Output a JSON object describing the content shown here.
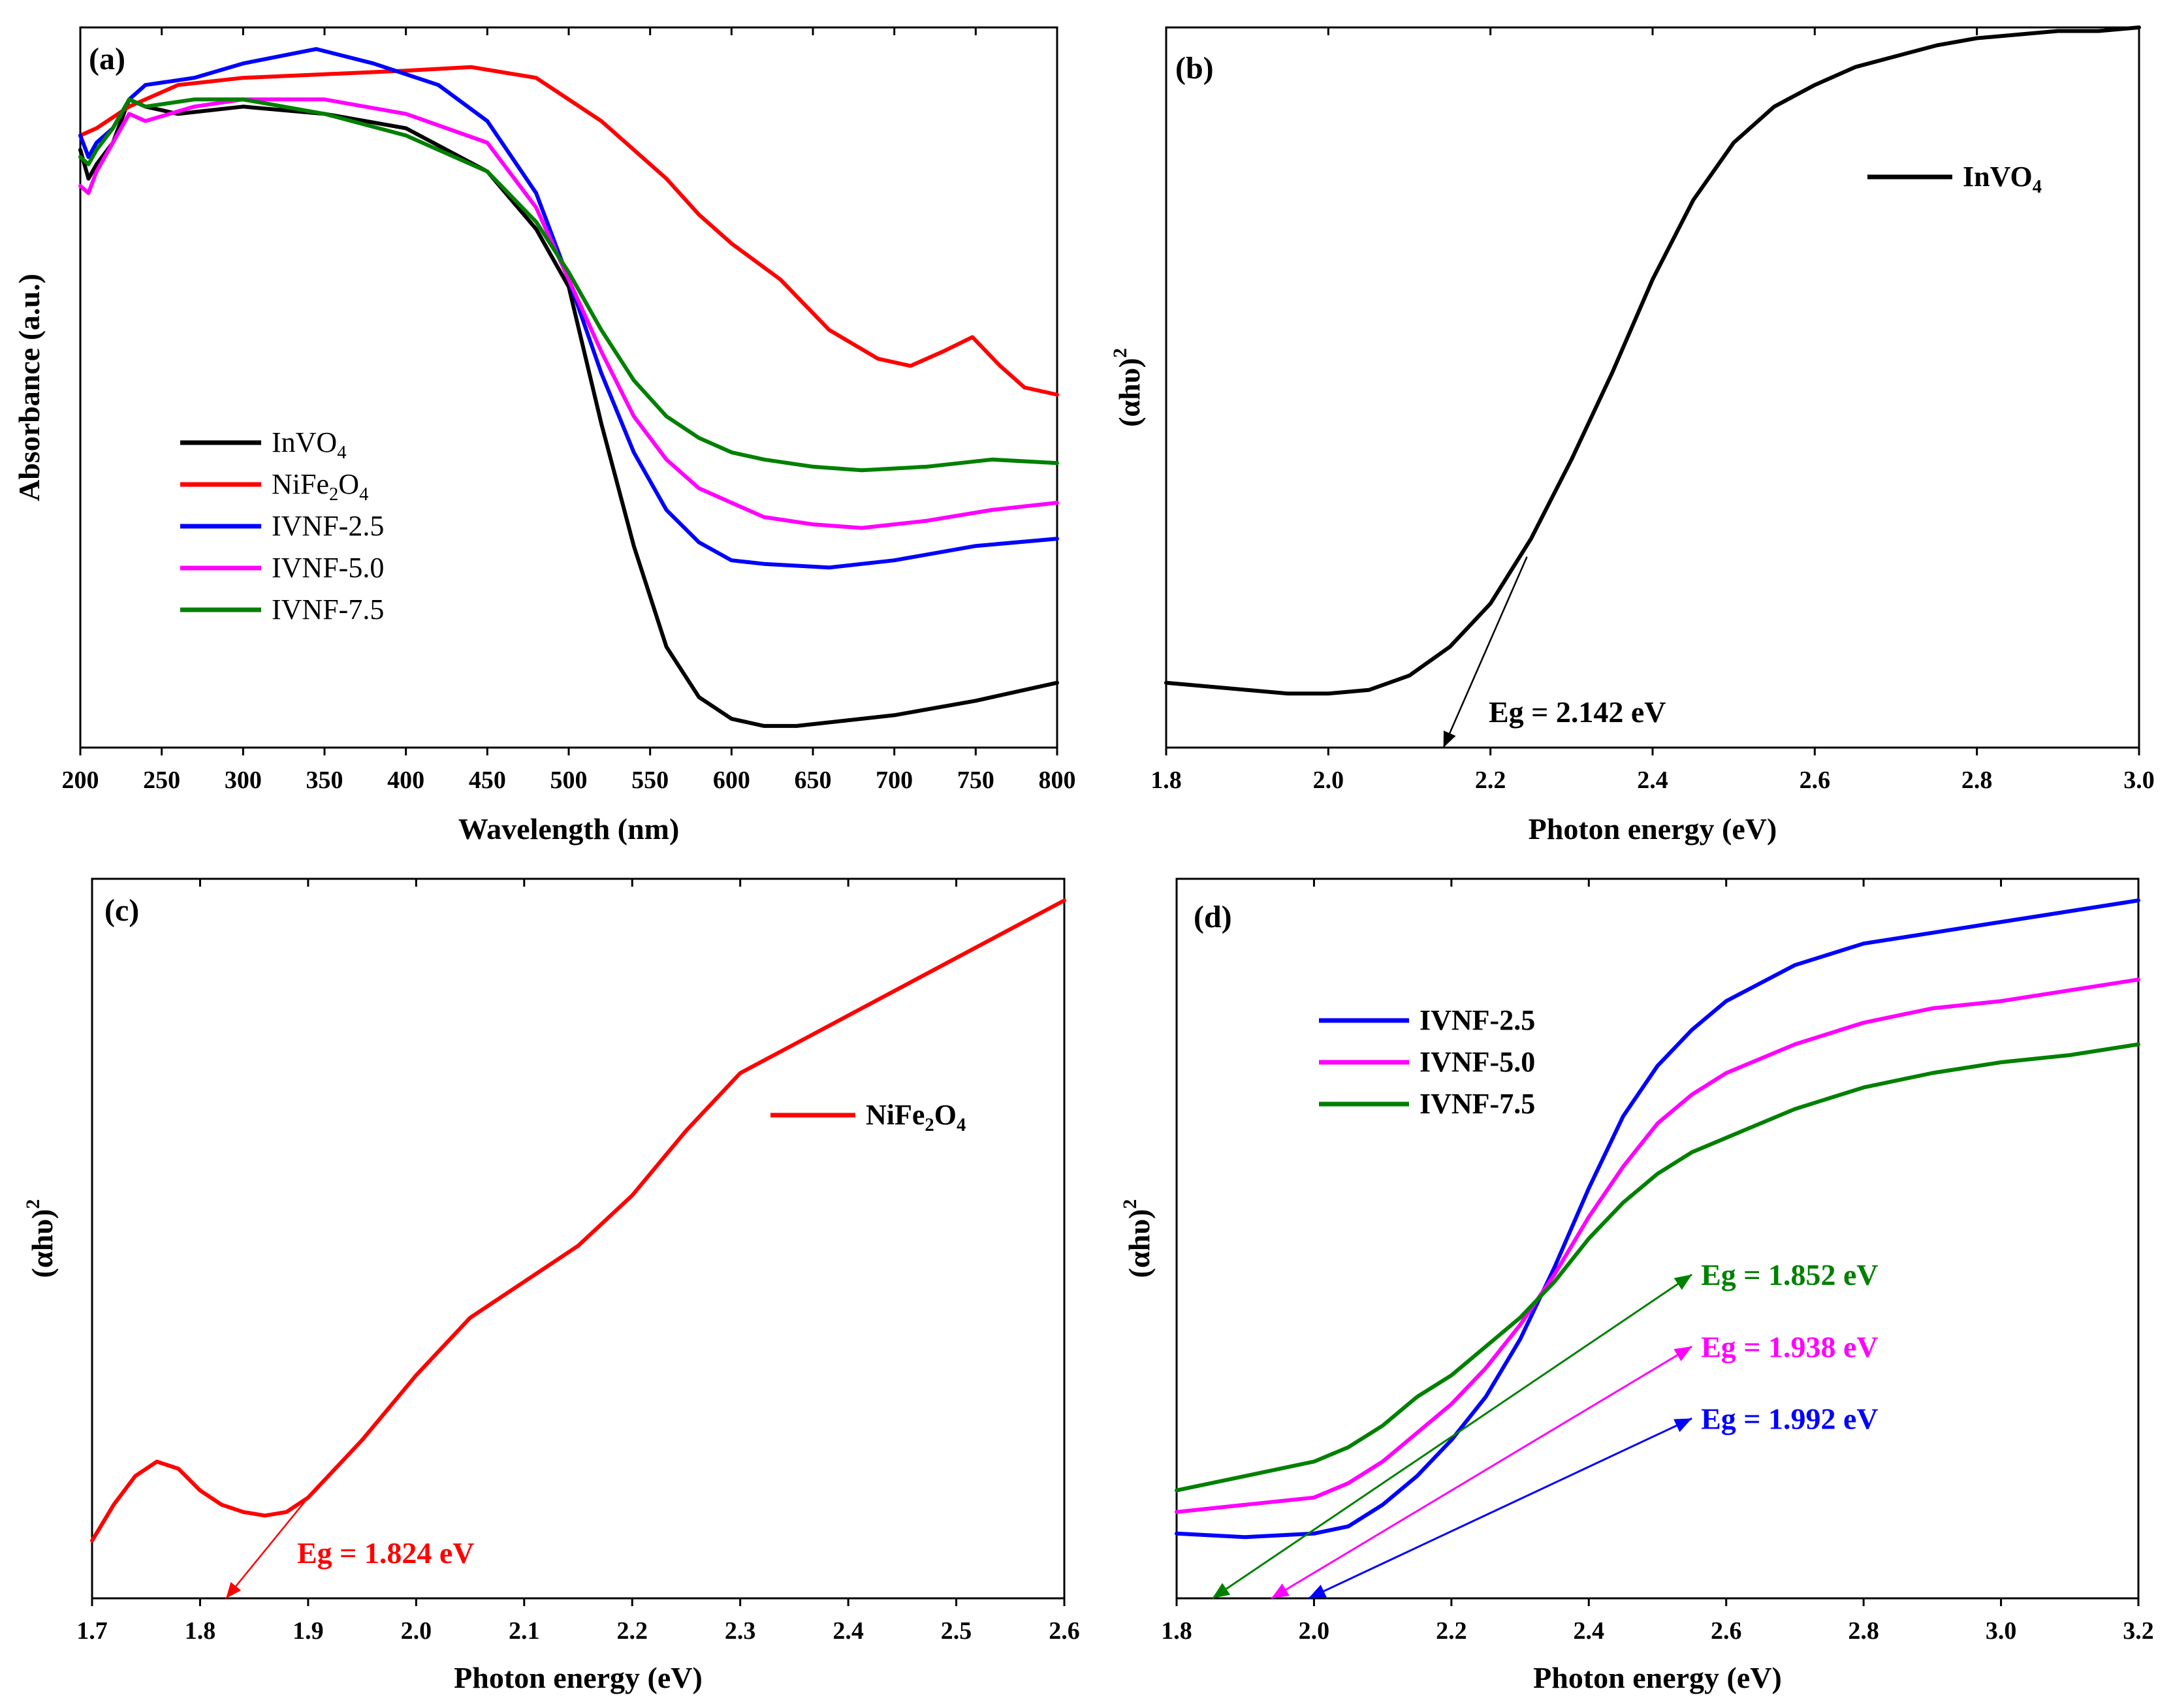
{
  "chart_data": [
    {
      "id": "a",
      "type": "line",
      "panel_label": "(a)",
      "title": "",
      "xlabel": "Wavelength (nm)",
      "ylabel": "Absorbance (a.u.)",
      "xlim": [
        200,
        800
      ],
      "ylim": [
        0,
        1
      ],
      "xticks": [
        200,
        250,
        300,
        350,
        400,
        450,
        500,
        550,
        600,
        650,
        700,
        750,
        800
      ],
      "xtick_labels": [
        "200",
        "250",
        "300",
        "350",
        "400",
        "450",
        "500",
        "550",
        "600",
        "650",
        "700",
        "750",
        "800"
      ],
      "yticks_shown": false,
      "legend_position": "lower-left",
      "series": [
        {
          "name": "InVO4",
          "legend_main": "InVO",
          "legend_sub": [
            "4"
          ],
          "legend_parts": [
            "InVO",
            "4"
          ],
          "color": "#000000",
          "x": [
            200,
            205,
            210,
            220,
            230,
            240,
            260,
            300,
            350,
            400,
            450,
            480,
            500,
            520,
            540,
            560,
            580,
            600,
            620,
            640,
            660,
            700,
            750,
            800
          ],
          "y": [
            0.83,
            0.79,
            0.81,
            0.84,
            0.9,
            0.89,
            0.88,
            0.89,
            0.88,
            0.86,
            0.8,
            0.72,
            0.64,
            0.45,
            0.28,
            0.14,
            0.07,
            0.04,
            0.03,
            0.03,
            0.035,
            0.045,
            0.065,
            0.09
          ]
        },
        {
          "name": "NiFe2O4",
          "legend_main": "NiFe",
          "legend_sub": [
            "2",
            "4"
          ],
          "legend_parts": [
            "NiFe",
            "2",
            "O",
            "4"
          ],
          "color": "#ff0000",
          "x": [
            200,
            210,
            230,
            260,
            300,
            350,
            400,
            440,
            480,
            520,
            560,
            580,
            600,
            630,
            660,
            690,
            710,
            730,
            748,
            765,
            780,
            800
          ],
          "y": [
            0.85,
            0.86,
            0.89,
            0.92,
            0.93,
            0.935,
            0.94,
            0.945,
            0.93,
            0.87,
            0.79,
            0.74,
            0.7,
            0.65,
            0.58,
            0.54,
            0.53,
            0.55,
            0.57,
            0.53,
            0.5,
            0.49
          ]
        },
        {
          "name": "IVNF-2.5",
          "legend_main": "IVNF-2.5",
          "legend_sub": [],
          "legend_parts": [
            "IVNF-2.5"
          ],
          "color": "#0000ff",
          "x": [
            200,
            205,
            210,
            220,
            230,
            240,
            270,
            300,
            345,
            380,
            420,
            450,
            480,
            500,
            520,
            540,
            560,
            580,
            600,
            620,
            660,
            700,
            750,
            800
          ],
          "y": [
            0.85,
            0.82,
            0.84,
            0.86,
            0.9,
            0.92,
            0.93,
            0.95,
            0.97,
            0.95,
            0.92,
            0.87,
            0.77,
            0.65,
            0.52,
            0.41,
            0.33,
            0.285,
            0.26,
            0.255,
            0.25,
            0.26,
            0.28,
            0.29
          ]
        },
        {
          "name": "IVNF-5.0",
          "legend_main": "IVNF-5.0",
          "legend_sub": [],
          "legend_parts": [
            "IVNF-5.0"
          ],
          "color": "#ff00ff",
          "x": [
            200,
            205,
            210,
            220,
            230,
            240,
            270,
            300,
            350,
            400,
            450,
            480,
            500,
            520,
            540,
            560,
            580,
            600,
            620,
            650,
            680,
            720,
            760,
            800
          ],
          "y": [
            0.78,
            0.77,
            0.8,
            0.84,
            0.88,
            0.87,
            0.89,
            0.9,
            0.9,
            0.88,
            0.84,
            0.75,
            0.65,
            0.55,
            0.46,
            0.4,
            0.36,
            0.34,
            0.32,
            0.31,
            0.305,
            0.315,
            0.33,
            0.34
          ]
        },
        {
          "name": "IVNF-7.5",
          "legend_main": "IVNF-7.5",
          "legend_sub": [],
          "legend_parts": [
            "IVNF-7.5"
          ],
          "color": "#008000",
          "x": [
            200,
            205,
            210,
            220,
            230,
            240,
            270,
            300,
            350,
            400,
            450,
            480,
            500,
            520,
            540,
            560,
            580,
            600,
            620,
            650,
            680,
            720,
            760,
            800
          ],
          "y": [
            0.82,
            0.81,
            0.83,
            0.86,
            0.9,
            0.89,
            0.9,
            0.9,
            0.88,
            0.85,
            0.8,
            0.73,
            0.66,
            0.58,
            0.51,
            0.46,
            0.43,
            0.41,
            0.4,
            0.39,
            0.385,
            0.39,
            0.4,
            0.395
          ]
        }
      ]
    },
    {
      "id": "b",
      "type": "line",
      "panel_label": "(b)",
      "title": "",
      "xlabel": "Photon energy (eV)",
      "ylabel_main": "(αhυ)",
      "ylabel_sup": "2",
      "xlim": [
        1.8,
        3.0
      ],
      "ylim": [
        0,
        1
      ],
      "xticks": [
        1.8,
        2.0,
        2.2,
        2.4,
        2.6,
        2.8,
        3.0
      ],
      "xtick_labels": [
        "1.8",
        "2.0",
        "2.2",
        "2.4",
        "2.6",
        "2.8",
        "3.0"
      ],
      "yticks_shown": false,
      "legend_position": "top-right",
      "series": [
        {
          "name": "InVO4",
          "legend_main": "InVO",
          "legend_sub": [
            "4"
          ],
          "legend_parts": [
            "InVO",
            "4"
          ],
          "color": "#000000",
          "x": [
            1.8,
            1.85,
            1.9,
            1.95,
            2.0,
            2.05,
            2.1,
            2.15,
            2.2,
            2.25,
            2.3,
            2.35,
            2.4,
            2.45,
            2.5,
            2.55,
            2.6,
            2.65,
            2.7,
            2.75,
            2.8,
            2.85,
            2.9,
            2.95,
            3.0
          ],
          "y": [
            0.09,
            0.085,
            0.08,
            0.075,
            0.075,
            0.08,
            0.1,
            0.14,
            0.2,
            0.29,
            0.4,
            0.52,
            0.65,
            0.76,
            0.84,
            0.89,
            0.92,
            0.945,
            0.96,
            0.975,
            0.985,
            0.99,
            0.995,
            0.995,
            1.0
          ]
        }
      ],
      "annotations": [
        {
          "text": "Eg = 2.142 eV",
          "value_ev": 2.142,
          "color": "#000000"
        }
      ]
    },
    {
      "id": "c",
      "type": "line",
      "panel_label": "(c)",
      "title": "",
      "xlabel": "Photon energy (eV)",
      "ylabel_main": "(αhυ)",
      "ylabel_sup": "2",
      "xlim": [
        1.7,
        2.6
      ],
      "ylim": [
        0,
        1
      ],
      "xticks": [
        1.7,
        1.8,
        1.9,
        2.0,
        2.1,
        2.2,
        2.3,
        2.4,
        2.5,
        2.6
      ],
      "xtick_labels": [
        "1.7",
        "1.8",
        "1.9",
        "2.0",
        "2.1",
        "2.2",
        "2.3",
        "2.4",
        "2.5",
        "2.6"
      ],
      "yticks_shown": false,
      "legend_position": "upper-right",
      "series": [
        {
          "name": "NiFe2O4",
          "legend_main": "NiFe",
          "legend_sub": [
            "2",
            "4"
          ],
          "legend_parts": [
            "NiFe",
            "2",
            "O",
            "4"
          ],
          "color": "#ff0000",
          "x": [
            1.7,
            1.72,
            1.74,
            1.76,
            1.78,
            1.8,
            1.82,
            1.84,
            1.86,
            1.88,
            1.9,
            1.95,
            2.0,
            2.05,
            2.1,
            2.15,
            2.2,
            2.25,
            2.3,
            2.35,
            2.4,
            2.45,
            2.5,
            2.55,
            2.6
          ],
          "y": [
            0.08,
            0.13,
            0.17,
            0.19,
            0.18,
            0.15,
            0.13,
            0.12,
            0.115,
            0.12,
            0.14,
            0.22,
            0.31,
            0.39,
            0.44,
            0.49,
            0.56,
            0.65,
            0.73,
            0.77,
            0.81,
            0.85,
            0.89,
            0.93,
            0.97
          ]
        }
      ],
      "annotations": [
        {
          "text": "Eg = 1.824 eV",
          "value_ev": 1.824,
          "color": "#ff0000"
        }
      ]
    },
    {
      "id": "d",
      "type": "line",
      "panel_label": "(d)",
      "title": "",
      "xlabel": "Photon energy (eV)",
      "ylabel_main": "(αhυ)",
      "ylabel_sup": "2",
      "xlim": [
        1.8,
        3.2
      ],
      "ylim": [
        0,
        1
      ],
      "xticks": [
        1.8,
        2.0,
        2.2,
        2.4,
        2.6,
        2.8,
        3.0,
        3.2
      ],
      "xtick_labels": [
        "1.8",
        "2.0",
        "2.2",
        "2.4",
        "2.6",
        "2.8",
        "3.0",
        "3.2"
      ],
      "yticks_shown": false,
      "legend_position": "upper-left",
      "series": [
        {
          "name": "IVNF-2.5",
          "legend_main": "IVNF-2.5",
          "legend_sub": [],
          "legend_parts": [
            "IVNF-2.5"
          ],
          "color": "#0000ff",
          "x": [
            1.8,
            1.9,
            2.0,
            2.05,
            2.1,
            2.15,
            2.2,
            2.25,
            2.3,
            2.35,
            2.4,
            2.45,
            2.5,
            2.55,
            2.6,
            2.7,
            2.8,
            2.9,
            3.0,
            3.1,
            3.2
          ],
          "y": [
            0.09,
            0.085,
            0.09,
            0.1,
            0.13,
            0.17,
            0.22,
            0.28,
            0.36,
            0.46,
            0.57,
            0.67,
            0.74,
            0.79,
            0.83,
            0.88,
            0.91,
            0.925,
            0.94,
            0.955,
            0.97
          ]
        },
        {
          "name": "IVNF-5.0",
          "legend_main": "IVNF-5.0",
          "legend_sub": [],
          "legend_parts": [
            "IVNF-5.0"
          ],
          "color": "#ff00ff",
          "x": [
            1.8,
            1.9,
            2.0,
            2.05,
            2.1,
            2.15,
            2.2,
            2.25,
            2.3,
            2.35,
            2.4,
            2.45,
            2.5,
            2.55,
            2.6,
            2.7,
            2.8,
            2.9,
            3.0,
            3.1,
            3.2
          ],
          "y": [
            0.12,
            0.13,
            0.14,
            0.16,
            0.19,
            0.23,
            0.27,
            0.32,
            0.38,
            0.45,
            0.53,
            0.6,
            0.66,
            0.7,
            0.73,
            0.77,
            0.8,
            0.82,
            0.83,
            0.845,
            0.86
          ]
        },
        {
          "name": "IVNF-7.5",
          "legend_main": "IVNF-7.5",
          "legend_sub": [],
          "legend_parts": [
            "IVNF-7.5"
          ],
          "color": "#008000",
          "x": [
            1.8,
            1.9,
            2.0,
            2.05,
            2.1,
            2.15,
            2.2,
            2.25,
            2.3,
            2.35,
            2.4,
            2.45,
            2.5,
            2.55,
            2.6,
            2.7,
            2.8,
            2.9,
            3.0,
            3.1,
            3.2
          ],
          "y": [
            0.15,
            0.17,
            0.19,
            0.21,
            0.24,
            0.28,
            0.31,
            0.35,
            0.39,
            0.44,
            0.5,
            0.55,
            0.59,
            0.62,
            0.64,
            0.68,
            0.71,
            0.73,
            0.745,
            0.755,
            0.77
          ]
        }
      ],
      "annotations": [
        {
          "text": "Eg = 1.852 eV",
          "value_ev": 1.852,
          "color": "#008000",
          "level": 0.4
        },
        {
          "text": "Eg = 1.938 eV",
          "value_ev": 1.938,
          "color": "#ff00ff",
          "level": 0.3
        },
        {
          "text": "Eg = 1.992 eV",
          "value_ev": 1.992,
          "color": "#0000ff",
          "level": 0.2
        }
      ]
    }
  ]
}
